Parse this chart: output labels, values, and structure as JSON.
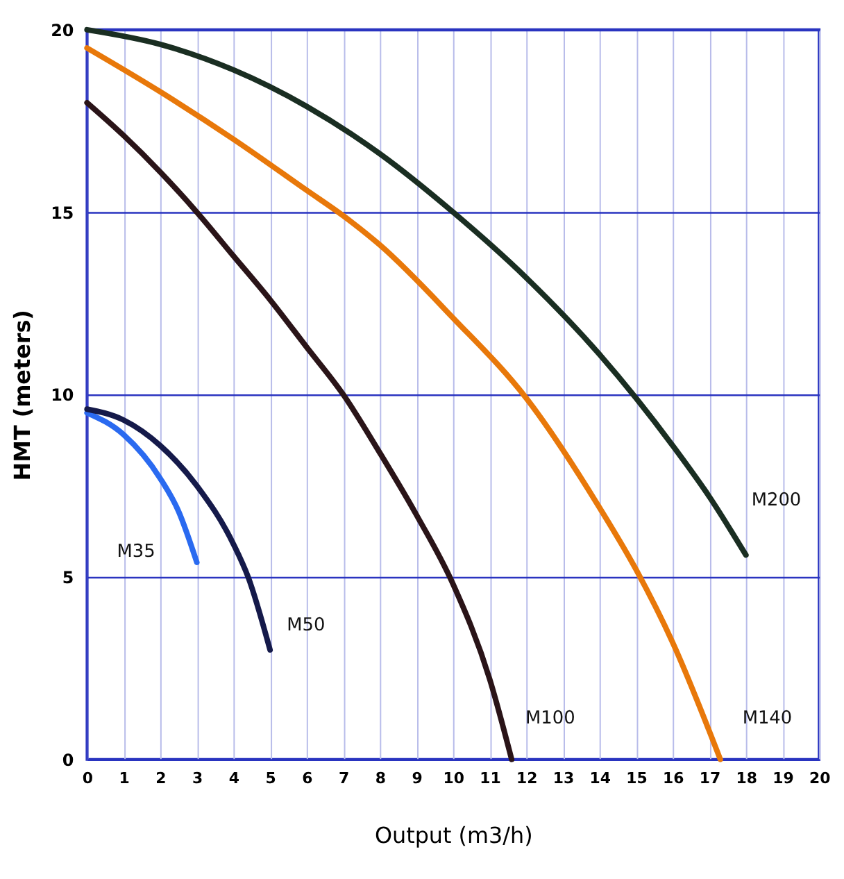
{
  "chart_data": {
    "type": "line",
    "xlabel": "Output (m3/h)",
    "ylabel": "HMT (meters)",
    "xlim": [
      0,
      20
    ],
    "xticks": [
      0,
      1,
      2,
      3,
      4,
      5,
      6,
      7,
      8,
      9,
      10,
      11,
      12,
      13,
      14,
      15,
      16,
      17,
      18,
      19,
      20
    ],
    "ylim": [
      0,
      20
    ],
    "yticks": [
      0,
      5,
      10,
      15,
      20
    ],
    "grid": true,
    "marker": "none",
    "line_style": "solid",
    "series": [
      {
        "name": "M35",
        "color": "#2a6af0",
        "x": [
          0,
          1,
          2,
          2.5,
          3
        ],
        "values": [
          9.5,
          8.9,
          7.7,
          6.8,
          5.4
        ]
      },
      {
        "name": "M50",
        "color": "#151a4a",
        "x": [
          0,
          1,
          2,
          3,
          4,
          4.4,
          5
        ],
        "values": [
          9.6,
          9.3,
          8.6,
          7.5,
          5.9,
          5,
          3
        ]
      },
      {
        "name": "M100",
        "color": "#2a1418",
        "x": [
          0,
          1,
          2,
          3,
          4,
          5,
          6,
          7,
          8,
          9,
          10,
          11,
          11.6
        ],
        "values": [
          18,
          17.1,
          16.1,
          15,
          13.8,
          12.6,
          11.3,
          10,
          8.4,
          6.7,
          4.8,
          2.2,
          0
        ]
      },
      {
        "name": "M140",
        "color": "#e8780a",
        "x": [
          0,
          2,
          4,
          6,
          7,
          8,
          10,
          12,
          14,
          15,
          16,
          17.3
        ],
        "values": [
          19.5,
          18.3,
          17,
          15.6,
          14.9,
          14.1,
          12.1,
          9.9,
          6.9,
          5.2,
          3.2,
          0
        ]
      },
      {
        "name": "M200",
        "color": "#1a2e22",
        "x": [
          0,
          2,
          4,
          6,
          8,
          10,
          12,
          14,
          15,
          16,
          17,
          18
        ],
        "values": [
          20,
          19.6,
          18.9,
          17.9,
          16.6,
          15,
          13.2,
          11.1,
          9.9,
          8.6,
          7.2,
          5.6
        ]
      }
    ]
  }
}
